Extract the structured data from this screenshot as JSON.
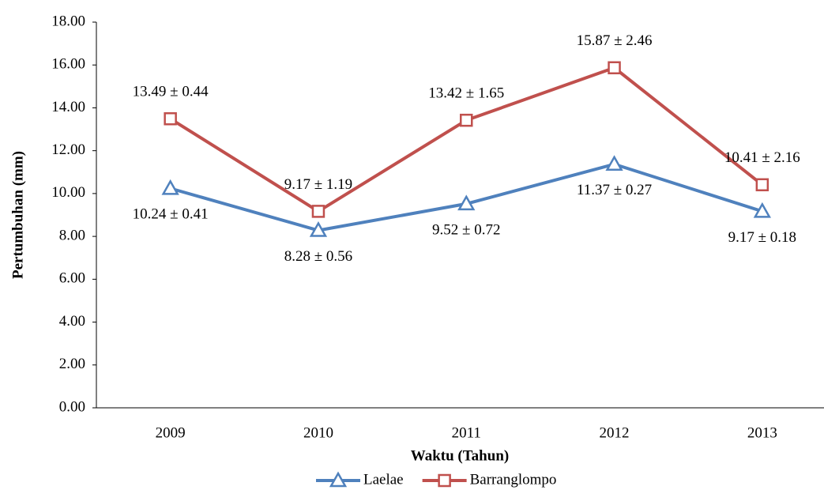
{
  "chart_data": {
    "type": "line",
    "y_label": "Pertumbuhan (mm)",
    "x_label": "Waktu (Tahun)",
    "categories": [
      "2009",
      "2010",
      "2011",
      "2012",
      "2013"
    ],
    "series": [
      {
        "name": "Laelae",
        "color": "#4f81bd",
        "marker": "triangle",
        "label_position": "below",
        "values": [
          10.24,
          8.28,
          9.52,
          11.37,
          9.17
        ],
        "value_labels": [
          "10.24 ± 0.41",
          "8.28 ± 0.56",
          "9.52 ± 0.72",
          "11.37 ± 0.27",
          "9.17 ± 0.18"
        ]
      },
      {
        "name": "Barranglompo",
        "color": "#c0504d",
        "marker": "square",
        "label_position": "above",
        "values": [
          13.49,
          9.17,
          13.42,
          15.87,
          10.41
        ],
        "value_labels": [
          "13.49 ± 0.44",
          "9.17 ± 1.19",
          "13.42 ± 1.65",
          "15.87 ± 2.46",
          "10.41 ± 2.16"
        ]
      }
    ],
    "ylim": [
      0,
      18
    ],
    "yticks": [
      {
        "value": 0,
        "label": "0.00"
      },
      {
        "value": 2,
        "label": "2.00"
      },
      {
        "value": 4,
        "label": "4.00"
      },
      {
        "value": 6,
        "label": "6.00"
      },
      {
        "value": 8,
        "label": "8.00"
      },
      {
        "value": 10,
        "label": "10.00"
      },
      {
        "value": 12,
        "label": "12.00"
      },
      {
        "value": 14,
        "label": "14.00"
      },
      {
        "value": 16,
        "label": "16.00"
      },
      {
        "value": 18,
        "label": "18.00"
      }
    ],
    "grid": false,
    "legend": "bottom"
  }
}
